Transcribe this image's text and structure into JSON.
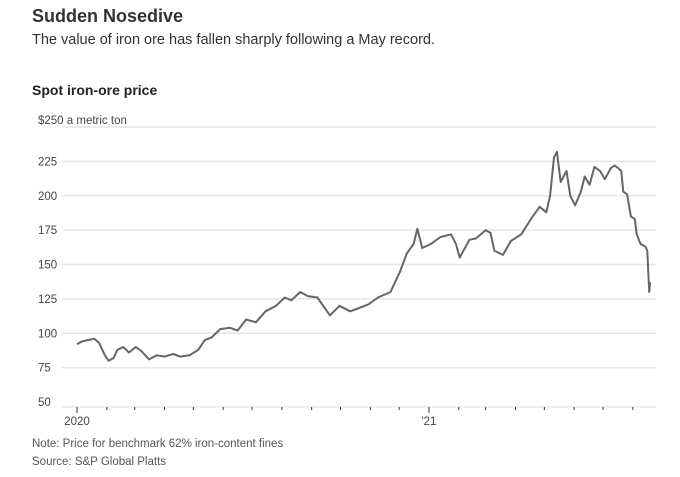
{
  "header": {
    "title": "Sudden Nosedive",
    "subtitle": "The value of iron ore has fallen sharply following a May record."
  },
  "chart_data": {
    "type": "line",
    "title": "Spot iron-ore price",
    "ylabel": "$250 a metric ton",
    "unit_label": "a metric ton",
    "ylim": [
      50,
      250
    ],
    "y_ticks": [
      50,
      75,
      100,
      125,
      150,
      175,
      200,
      225,
      250
    ],
    "y_tick_labels": [
      "50",
      "75",
      "100",
      "125",
      "150",
      "175",
      "200",
      "225",
      "$250"
    ],
    "x_tick_labels": [
      {
        "date": "2020-01-01",
        "label": "2020"
      },
      {
        "date": "2021-01-01",
        "label": "'21"
      }
    ],
    "xlim": [
      "2020-01-01",
      "2021-08-31"
    ],
    "grid": true,
    "line_color": "#666666",
    "series": [
      {
        "points": [
          [
            "2020-01-01",
            92
          ],
          [
            "2020-01-06",
            94
          ],
          [
            "2020-01-12",
            95
          ],
          [
            "2020-01-19",
            96
          ],
          [
            "2020-01-24",
            93
          ],
          [
            "2020-01-30",
            84
          ],
          [
            "2020-02-03",
            80
          ],
          [
            "2020-02-08",
            82
          ],
          [
            "2020-02-12",
            88
          ],
          [
            "2020-02-18",
            90
          ],
          [
            "2020-02-24",
            86
          ],
          [
            "2020-03-02",
            90
          ],
          [
            "2020-03-08",
            87
          ],
          [
            "2020-03-16",
            81
          ],
          [
            "2020-03-24",
            84
          ],
          [
            "2020-04-01",
            83
          ],
          [
            "2020-04-10",
            85
          ],
          [
            "2020-04-17",
            83
          ],
          [
            "2020-04-27",
            84
          ],
          [
            "2020-05-06",
            88
          ],
          [
            "2020-05-13",
            95
          ],
          [
            "2020-05-20",
            97
          ],
          [
            "2020-05-29",
            103
          ],
          [
            "2020-06-08",
            104
          ],
          [
            "2020-06-16",
            102
          ],
          [
            "2020-06-25",
            110
          ],
          [
            "2020-07-05",
            108
          ],
          [
            "2020-07-15",
            116
          ],
          [
            "2020-07-26",
            120
          ],
          [
            "2020-08-04",
            126
          ],
          [
            "2020-08-11",
            124
          ],
          [
            "2020-08-20",
            130
          ],
          [
            "2020-08-28",
            127
          ],
          [
            "2020-09-07",
            126
          ],
          [
            "2020-09-20",
            113
          ],
          [
            "2020-09-30",
            120
          ],
          [
            "2020-10-11",
            116
          ],
          [
            "2020-10-19",
            118
          ],
          [
            "2020-10-30",
            121
          ],
          [
            "2020-11-09",
            126
          ],
          [
            "2020-11-22",
            130
          ],
          [
            "2020-12-02",
            145
          ],
          [
            "2020-12-09",
            158
          ],
          [
            "2020-12-16",
            165
          ],
          [
            "2020-12-20",
            176
          ],
          [
            "2020-12-25",
            162
          ],
          [
            "2021-01-03",
            165
          ],
          [
            "2021-01-13",
            170
          ],
          [
            "2021-01-24",
            172
          ],
          [
            "2021-01-29",
            165
          ],
          [
            "2021-02-02",
            155
          ],
          [
            "2021-02-12",
            168
          ],
          [
            "2021-02-19",
            169
          ],
          [
            "2021-03-01",
            175
          ],
          [
            "2021-03-06",
            173
          ],
          [
            "2021-03-10",
            160
          ],
          [
            "2021-03-19",
            157
          ],
          [
            "2021-03-27",
            167
          ],
          [
            "2021-04-07",
            172
          ],
          [
            "2021-04-17",
            183
          ],
          [
            "2021-04-26",
            192
          ],
          [
            "2021-05-03",
            188
          ],
          [
            "2021-05-07",
            200
          ],
          [
            "2021-05-11",
            228
          ],
          [
            "2021-05-14",
            232
          ],
          [
            "2021-05-18",
            210
          ],
          [
            "2021-05-24",
            218
          ],
          [
            "2021-05-28",
            200
          ],
          [
            "2021-06-02",
            193
          ],
          [
            "2021-06-08",
            203
          ],
          [
            "2021-06-12",
            214
          ],
          [
            "2021-06-17",
            208
          ],
          [
            "2021-06-22",
            221
          ],
          [
            "2021-06-28",
            218
          ],
          [
            "2021-07-03",
            212
          ],
          [
            "2021-07-09",
            220
          ],
          [
            "2021-07-13",
            222
          ],
          [
            "2021-07-17",
            220
          ],
          [
            "2021-07-20",
            218
          ],
          [
            "2021-07-22",
            203
          ],
          [
            "2021-07-26",
            201
          ],
          [
            "2021-07-30",
            185
          ],
          [
            "2021-08-03",
            183
          ],
          [
            "2021-08-05",
            172
          ],
          [
            "2021-08-09",
            165
          ],
          [
            "2021-08-14",
            163
          ],
          [
            "2021-08-16",
            160
          ],
          [
            "2021-08-18",
            130
          ],
          [
            "2021-08-19",
            137
          ]
        ]
      }
    ]
  },
  "footer": {
    "note": "Note: Price for benchmark 62% iron-content fines",
    "source": "Source: S&P Global Platts"
  }
}
